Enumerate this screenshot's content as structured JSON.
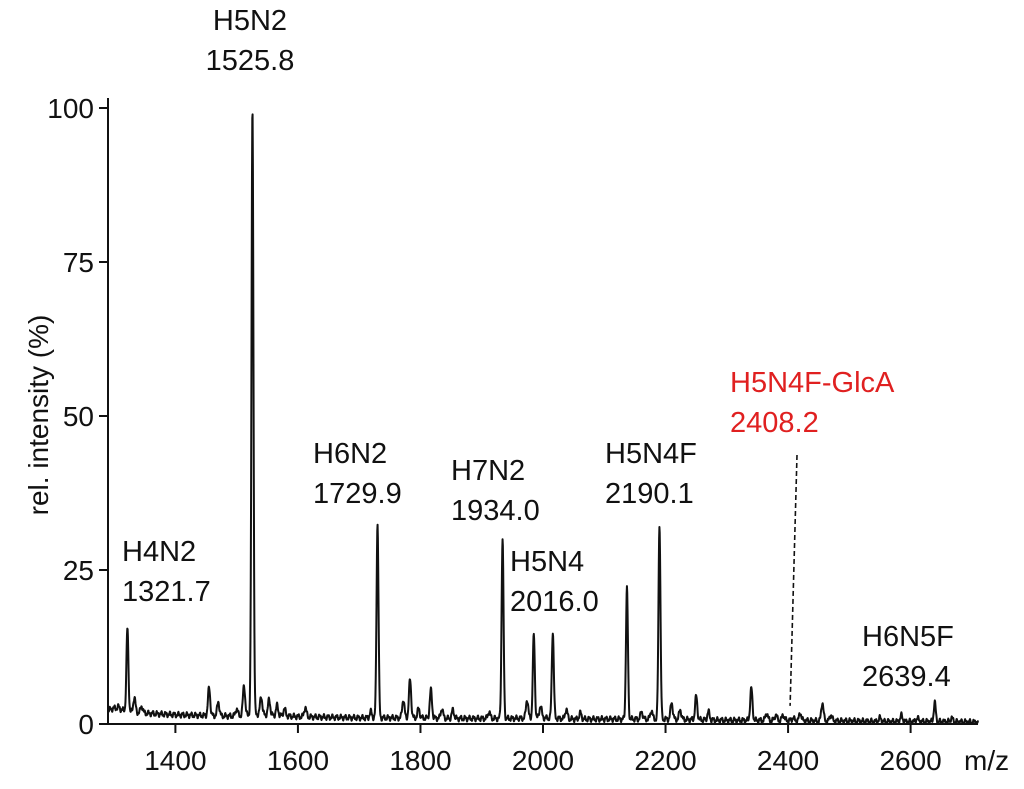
{
  "chart_data": {
    "type": "line",
    "xlabel": "m/z",
    "ylabel": "rel. intensity (%)",
    "xlim": [
      1290,
      2710
    ],
    "ylim": [
      0,
      100
    ],
    "x_ticks": [
      1400,
      1600,
      1800,
      2000,
      2200,
      2400,
      2600
    ],
    "y_ticks": [
      0,
      25,
      50,
      75,
      100
    ],
    "colors": {
      "line": "#111111",
      "highlight": "#e02020"
    },
    "baseline": [
      [
        1290,
        2.2
      ],
      [
        1300,
        2.6
      ],
      [
        1330,
        1.9
      ],
      [
        1360,
        1.7
      ],
      [
        1400,
        1.5
      ],
      [
        1440,
        1.4
      ],
      [
        1480,
        1.3
      ],
      [
        1500,
        1.3
      ],
      [
        1530,
        1.6
      ],
      [
        1560,
        1.4
      ],
      [
        1600,
        1.2
      ],
      [
        1650,
        1.1
      ],
      [
        1700,
        1.0
      ],
      [
        1750,
        1.0
      ],
      [
        1800,
        1.0
      ],
      [
        1850,
        0.9
      ],
      [
        1900,
        0.9
      ],
      [
        1950,
        0.9
      ],
      [
        2000,
        1.0
      ],
      [
        2050,
        0.8
      ],
      [
        2100,
        0.8
      ],
      [
        2150,
        0.8
      ],
      [
        2200,
        0.8
      ],
      [
        2250,
        0.7
      ],
      [
        2300,
        0.6
      ],
      [
        2350,
        0.6
      ],
      [
        2400,
        0.6
      ],
      [
        2450,
        0.5
      ],
      [
        2500,
        0.5
      ],
      [
        2550,
        0.4
      ],
      [
        2600,
        0.4
      ],
      [
        2650,
        0.4
      ],
      [
        2710,
        0.3
      ]
    ],
    "peaks": [
      {
        "mz": 1321.7,
        "intensity": 15.5,
        "label": "H4N2",
        "value_label": "1321.7"
      },
      {
        "mz": 1525.8,
        "intensity": 100,
        "label": "H5N2",
        "value_label": "1525.8"
      },
      {
        "mz": 1729.9,
        "intensity": 32.5,
        "label": "H6N2",
        "value_label": "1729.9"
      },
      {
        "mz": 1934.0,
        "intensity": 30,
        "label": "H7N2",
        "value_label": "1934.0"
      },
      {
        "mz": 1985.0,
        "intensity": 14.5,
        "label": "",
        "value_label": ""
      },
      {
        "mz": 2016.0,
        "intensity": 15,
        "label": "H5N4",
        "value_label": "2016.0"
      },
      {
        "mz": 2137.0,
        "intensity": 22,
        "label": "",
        "value_label": ""
      },
      {
        "mz": 2190.1,
        "intensity": 32.5,
        "label": "H5N4F",
        "value_label": "2190.1"
      },
      {
        "mz": 2408.2,
        "intensity": 1.0,
        "label": "H5N4F-GlcA",
        "value_label": "2408.2",
        "highlight": true
      },
      {
        "mz": 2639.4,
        "intensity": 3.5,
        "label": "H6N5F",
        "value_label": "2639.4"
      }
    ],
    "minor_peaks": [
      [
        1307,
        2.8
      ],
      [
        1333,
        4.3
      ],
      [
        1345,
        2.9
      ],
      [
        1455,
        5.9
      ],
      [
        1470,
        3.6
      ],
      [
        1500,
        2.5
      ],
      [
        1512,
        6.3
      ],
      [
        1540,
        4.5
      ],
      [
        1553,
        4.0
      ],
      [
        1566,
        3.0
      ],
      [
        1578,
        2.5
      ],
      [
        1612,
        2.7
      ],
      [
        1719,
        2.0
      ],
      [
        1772,
        4.0
      ],
      [
        1783,
        7.2
      ],
      [
        1797,
        2.5
      ],
      [
        1817,
        5.5
      ],
      [
        1835,
        2.5
      ],
      [
        1853,
        2.3
      ],
      [
        1912,
        2.0
      ],
      [
        1974,
        4.0
      ],
      [
        1996,
        3.0
      ],
      [
        2038,
        2.4
      ],
      [
        2061,
        1.8
      ],
      [
        2161,
        2.0
      ],
      [
        2177,
        2.2
      ],
      [
        2210,
        3.5
      ],
      [
        2224,
        2.3
      ],
      [
        2250,
        4.5
      ],
      [
        2270,
        2.0
      ],
      [
        2340,
        5.8
      ],
      [
        2365,
        1.8
      ],
      [
        2380,
        1.5
      ],
      [
        2392,
        1.5
      ],
      [
        2420,
        1.8
      ],
      [
        2456,
        3.5
      ],
      [
        2470,
        1.5
      ],
      [
        2550,
        1.0
      ],
      [
        2585,
        1.4
      ],
      [
        2611,
        1.0
      ],
      [
        2667,
        1.0
      ]
    ]
  }
}
